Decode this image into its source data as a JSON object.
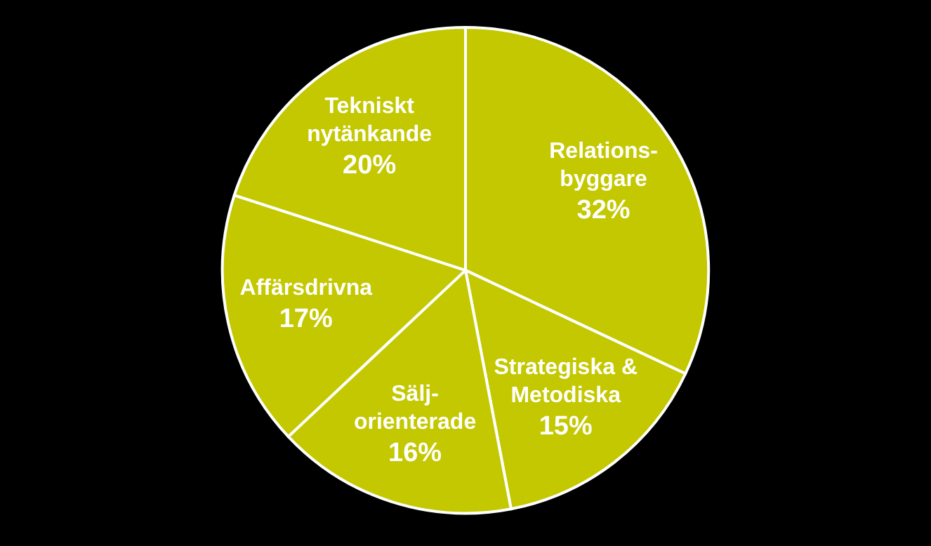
{
  "chart_data": {
    "type": "pie",
    "categories": [
      "Relations-\nbyggare",
      "Strategiska &\nMetodiska",
      "Sälj-\norienterade",
      "Affärsdrivna",
      "Tekniskt\nnytänkande"
    ],
    "values": [
      32,
      15,
      16,
      17,
      20
    ],
    "value_labels": [
      "32%",
      "15%",
      "16%",
      "17%",
      "20%"
    ],
    "colors": [
      "#c3c800",
      "#c3c800",
      "#c3c800",
      "#c3c800",
      "#c3c800"
    ],
    "legend": false
  }
}
